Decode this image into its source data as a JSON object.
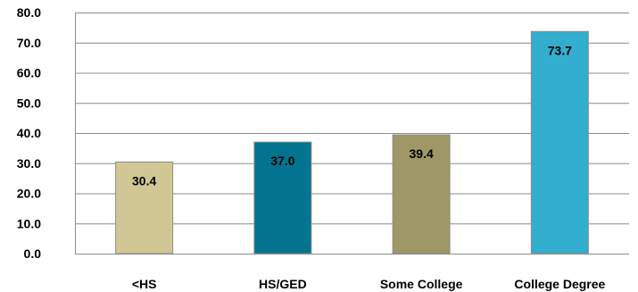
{
  "chart_data": {
    "type": "bar",
    "title": "",
    "xlabel": "",
    "ylabel": "",
    "categories": [
      "<HS",
      "HS/GED",
      "Some College",
      "College Degree"
    ],
    "values": [
      30.4,
      37.0,
      39.4,
      73.7
    ],
    "value_labels": [
      "30.4",
      "37.0",
      "39.4",
      "73.7"
    ],
    "bar_colors": [
      "#D1C795",
      "#02748F",
      "#A09767",
      "#33AECF"
    ],
    "ylim": [
      0,
      80
    ],
    "yticks": [
      0,
      10,
      20,
      30,
      40,
      50,
      60,
      70,
      80
    ],
    "ytick_labels": [
      "0.0",
      "10.0",
      "20.0",
      "30.0",
      "40.0",
      "50.0",
      "60.0",
      "70.0",
      "80.0"
    ],
    "grid": true,
    "legend": "none"
  }
}
